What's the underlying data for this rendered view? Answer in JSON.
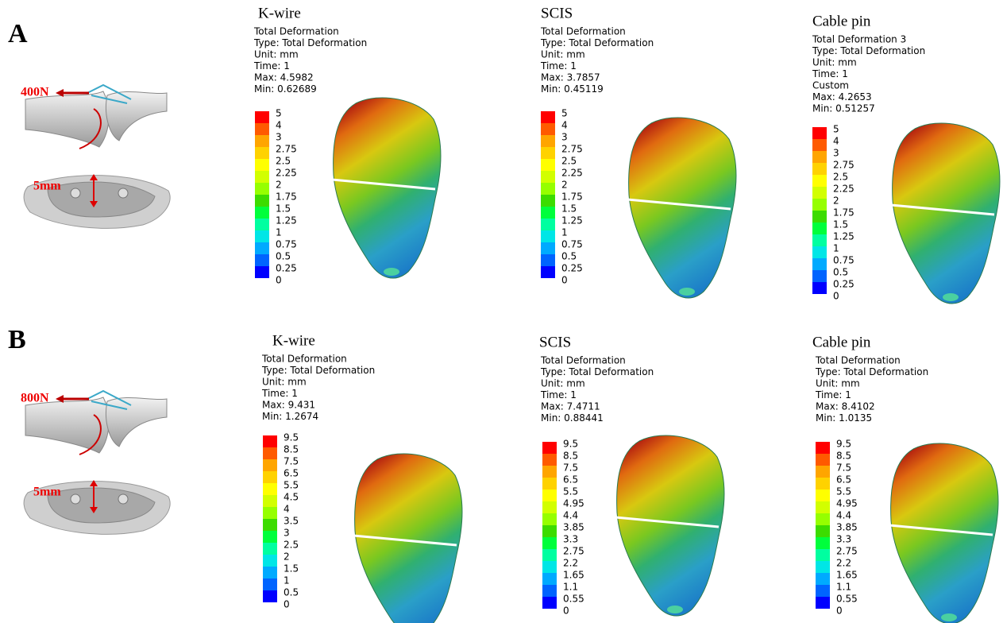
{
  "figure": {
    "legend_colors": [
      "#ff0000",
      "#ff5a00",
      "#ffa500",
      "#ffd200",
      "#ffff00",
      "#d2ff00",
      "#96ff00",
      "#3cdc00",
      "#00ff3c",
      "#00ffa0",
      "#00e6e6",
      "#00aaff",
      "#0064ff",
      "#0000ff"
    ],
    "rows": [
      {
        "label": "A",
        "force": "400N",
        "displacement": "5mm",
        "panels": [
          {
            "title": "K-wire",
            "info": [
              "Total Deformation",
              "Type: Total Deformation",
              "Unit: mm",
              "Time: 1",
              "Max: 4.5982",
              "Min: 0.62689"
            ],
            "legend": [
              "5",
              "4",
              "3",
              "2.75",
              "2.5",
              "2.25",
              "2",
              "1.75",
              "1.5",
              "1.25",
              "1",
              "0.75",
              "0.5",
              "0.25",
              "0"
            ]
          },
          {
            "title": "SCIS",
            "info": [
              "Total Deformation",
              "Type: Total Deformation",
              "Unit: mm",
              "Time: 1",
              "Max: 3.7857",
              "Min: 0.45119"
            ],
            "legend": [
              "5",
              "4",
              "3",
              "2.75",
              "2.5",
              "2.25",
              "2",
              "1.75",
              "1.5",
              "1.25",
              "1",
              "0.75",
              "0.5",
              "0.25",
              "0"
            ]
          },
          {
            "title": "Cable pin",
            "info": [
              "Total Deformation 3",
              "Type: Total Deformation",
              "Unit: mm",
              "Time: 1",
              "Custom",
              "Max: 4.2653",
              "Min: 0.51257"
            ],
            "legend": [
              "5",
              "4",
              "3",
              "2.75",
              "2.5",
              "2.25",
              "2",
              "1.75",
              "1.5",
              "1.25",
              "1",
              "0.75",
              "0.5",
              "0.25",
              "0"
            ]
          }
        ]
      },
      {
        "label": "B",
        "force": "800N",
        "displacement": "5mm",
        "panels": [
          {
            "title": "K-wire",
            "info": [
              "Total Deformation",
              "Type: Total Deformation",
              "Unit: mm",
              "Time: 1",
              "Max: 9.431",
              "Min: 1.2674"
            ],
            "legend": [
              "9.5",
              "8.5",
              "7.5",
              "6.5",
              "5.5",
              "4.5",
              "4",
              "3.5",
              "3",
              "2.5",
              "2",
              "1.5",
              "1",
              "0.5",
              "0"
            ]
          },
          {
            "title": "SCIS",
            "info": [
              "Total Deformation",
              "Type: Total Deformation",
              "Unit: mm",
              "Time: 1",
              "Max: 7.4711",
              "Min: 0.88441"
            ],
            "legend": [
              "9.5",
              "8.5",
              "7.5",
              "6.5",
              "5.5",
              "4.95",
              "4.4",
              "3.85",
              "3.3",
              "2.75",
              "2.2",
              "1.65",
              "1.1",
              "0.55",
              "0"
            ]
          },
          {
            "title": "Cable pin",
            "info": [
              "Total Deformation",
              "Type: Total Deformation",
              "Unit: mm",
              "Time: 1",
              "Max: 8.4102",
              "Min: 1.0135"
            ],
            "legend": [
              "9.5",
              "8.5",
              "7.5",
              "6.5",
              "5.5",
              "4.95",
              "4.4",
              "3.85",
              "3.3",
              "2.75",
              "2.2",
              "1.65",
              "1.1",
              "0.55",
              "0"
            ]
          }
        ]
      }
    ]
  }
}
